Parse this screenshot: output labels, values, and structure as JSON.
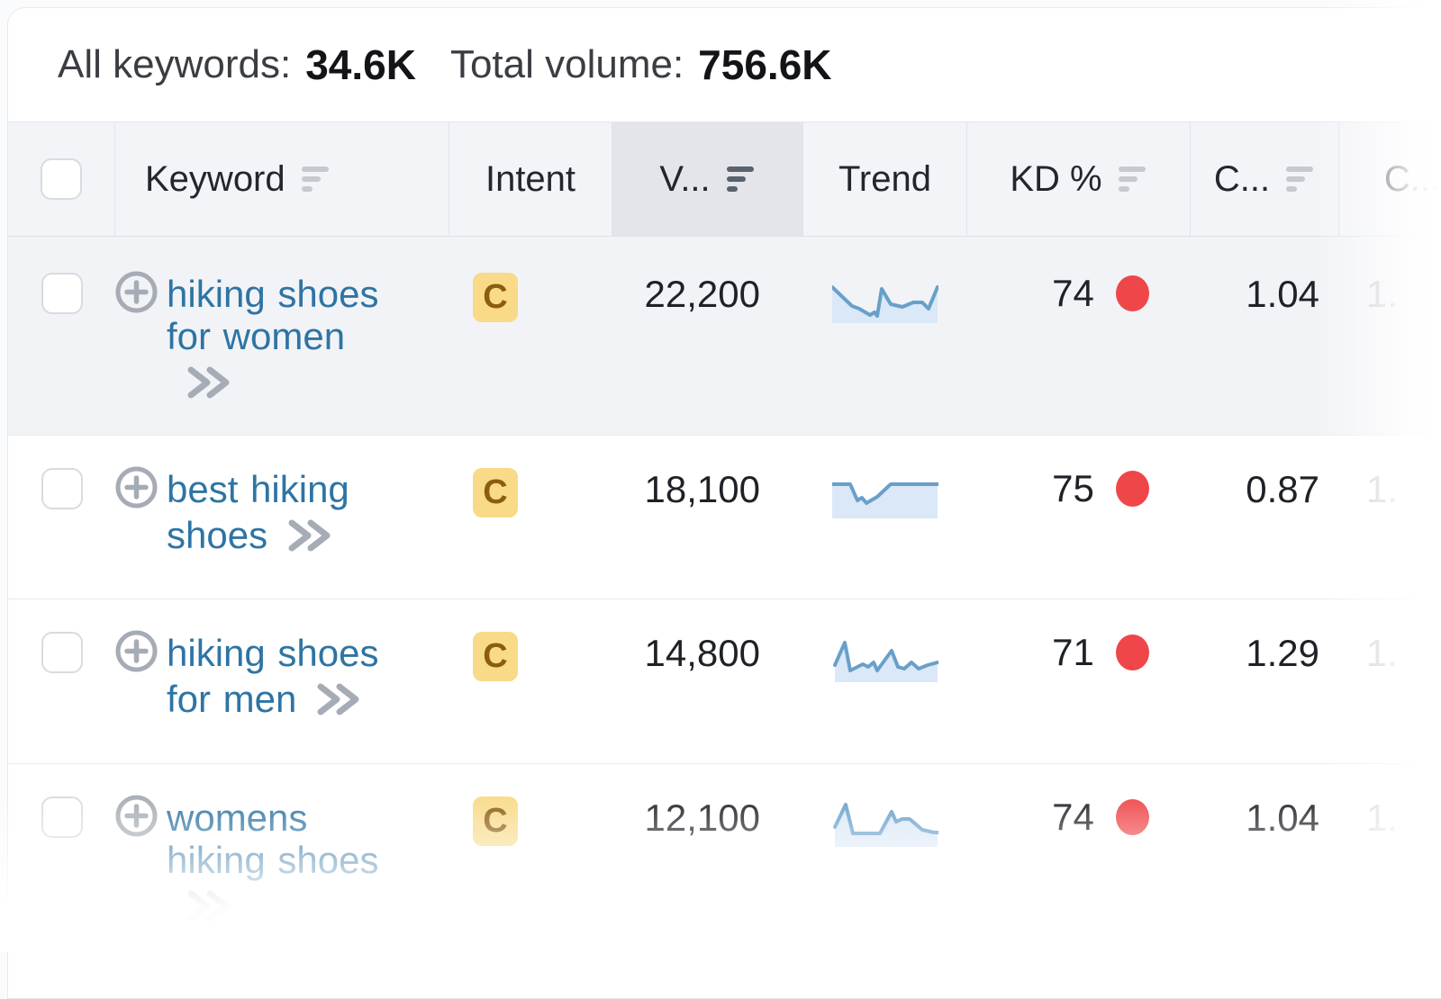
{
  "summary": {
    "all_keywords_label": "All keywords:",
    "all_keywords_value": "34.6K",
    "total_volume_label": "Total volume:",
    "total_volume_value": "756.6K"
  },
  "table": {
    "columns": {
      "keyword": "Keyword",
      "intent": "Intent",
      "volume": "V...",
      "trend": "Trend",
      "kd": "KD %",
      "cpc": "C...",
      "com": "C..."
    },
    "sorted_column": "volume",
    "sort_direction": "descending",
    "rows": [
      {
        "keyword": "hiking shoes for women",
        "intent": "C",
        "volume": "22,200",
        "kd": "74",
        "cpc": "1.04",
        "com": "1.",
        "selected_row_style": true,
        "trend": [
          [
            0,
            12
          ],
          [
            22,
            33
          ],
          [
            30,
            36
          ],
          [
            42,
            43
          ],
          [
            47,
            40
          ],
          [
            50,
            44
          ],
          [
            55,
            14
          ],
          [
            65,
            31
          ],
          [
            78,
            34
          ],
          [
            90,
            29
          ],
          [
            100,
            29
          ],
          [
            107,
            36
          ],
          [
            117,
            12
          ]
        ]
      },
      {
        "keyword": "best hiking shoes",
        "intent": "C",
        "volume": "18,100",
        "kd": "75",
        "cpc": "0.87",
        "com": "1.",
        "selected_row_style": false,
        "trend": [
          [
            0,
            14
          ],
          [
            20,
            14
          ],
          [
            28,
            32
          ],
          [
            33,
            29
          ],
          [
            38,
            35
          ],
          [
            50,
            28
          ],
          [
            65,
            14
          ],
          [
            117,
            14
          ]
        ]
      },
      {
        "keyword": "hiking shoes for men",
        "intent": "C",
        "volume": "14,800",
        "kd": "71",
        "cpc": "1.29",
        "com": "1.",
        "selected_row_style": false,
        "trend": [
          [
            3,
            33
          ],
          [
            14,
            8
          ],
          [
            20,
            39
          ],
          [
            34,
            32
          ],
          [
            40,
            35
          ],
          [
            46,
            30
          ],
          [
            50,
            39
          ],
          [
            66,
            17
          ],
          [
            73,
            35
          ],
          [
            80,
            37
          ],
          [
            88,
            30
          ],
          [
            96,
            37
          ],
          [
            106,
            33
          ],
          [
            117,
            30
          ]
        ]
      },
      {
        "keyword": "womens hiking shoes",
        "intent": "C",
        "volume": "12,100",
        "kd": "74",
        "cpc": "1.04",
        "com": "1.",
        "selected_row_style": false,
        "trend": [
          [
            3,
            30
          ],
          [
            15,
            5
          ],
          [
            23,
            37
          ],
          [
            53,
            37
          ],
          [
            66,
            13
          ],
          [
            71,
            24
          ],
          [
            78,
            21
          ],
          [
            86,
            21
          ],
          [
            100,
            33
          ],
          [
            113,
            36
          ],
          [
            117,
            36
          ]
        ]
      }
    ]
  },
  "icons": {
    "sort": "sort-bars-icon",
    "expand": "plus-circle-icon",
    "open_detail": "double-chevron-right-icon",
    "checkbox": "checkbox"
  },
  "colors": {
    "link_blue": "#2e74a4",
    "intent_badge_bg": "#f8da88",
    "intent_badge_text": "#8a5e0e",
    "kd_dot_red": "#ef4649",
    "spark_line": "#68a0c9",
    "spark_fill": "#dbe8f7",
    "header_bg": "#f3f4f8",
    "sorted_header_bg": "#e4e5ea",
    "selected_row_bg": "#f2f3f6"
  }
}
